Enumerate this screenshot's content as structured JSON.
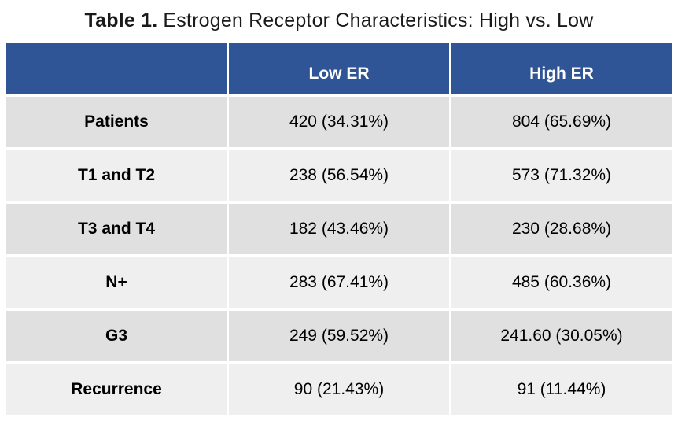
{
  "title": {
    "bold": "Table 1.",
    "rest": "Estrogen Receptor Characteristics: High vs. Low"
  },
  "chart_data": {
    "type": "table",
    "title": "Table 1. Estrogen Receptor Characteristics: High vs. Low",
    "columns": [
      "",
      "Low ER",
      "High ER"
    ],
    "rows": [
      {
        "label": "Patients",
        "low": "420 (34.31%)",
        "high": "804 (65.69%)"
      },
      {
        "label": "T1 and T2",
        "low": "238 (56.54%)",
        "high": "573 (71.32%)"
      },
      {
        "label": "T3 and T4",
        "low": "182 (43.46%)",
        "high": "230 (28.68%)"
      },
      {
        "label": "N+",
        "low": "283 (67.41%)",
        "high": "485 (60.36%)"
      },
      {
        "label": "G3",
        "low": "249 (59.52%)",
        "high": "241.60 (30.05%)"
      },
      {
        "label": "Recurrence",
        "low": "90 (21.43%)",
        "high": "91 (11.44%)"
      }
    ],
    "layout": {
      "banded_rows": true,
      "legend": "none",
      "grid": "white separators"
    }
  },
  "colors": {
    "header_bg": "#2F5597",
    "header_text": "#FFFFFF",
    "row_dark_bg": "#E0E0E0",
    "row_light_bg": "#EFEFEF",
    "body_text": "#000000",
    "separator": "#FFFFFF",
    "page_bg": "#FFFFFF"
  }
}
